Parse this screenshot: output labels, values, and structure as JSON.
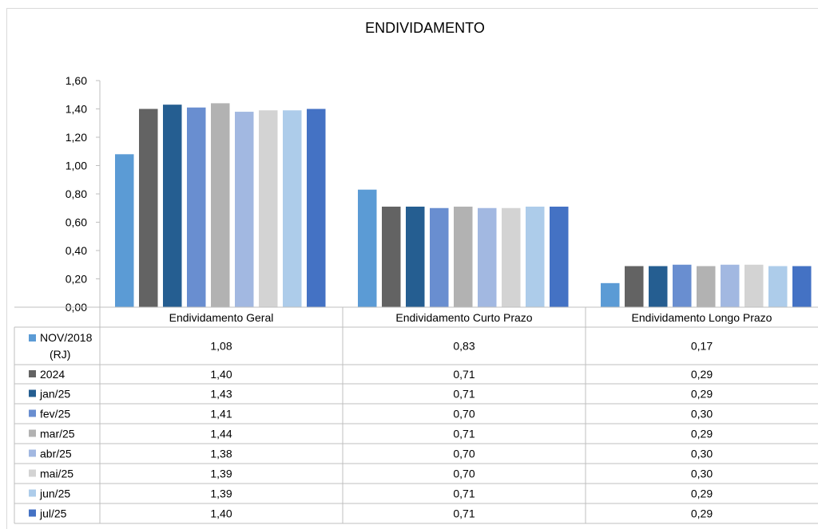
{
  "chart_data": {
    "type": "bar",
    "title": "ENDIVIDAMENTO",
    "categories": [
      "Endividamento Geral",
      "Endividamento Curto Prazo",
      "Endividamento Longo Prazo"
    ],
    "ylim": [
      0,
      1.6
    ],
    "yticks": [
      "0,00",
      "0,20",
      "0,40",
      "0,60",
      "0,80",
      "1,00",
      "1,20",
      "1,40",
      "1,60"
    ],
    "grid": false,
    "legend": "data-table",
    "series": [
      {
        "name": "NOV/2018 (RJ)",
        "color": "#5B9BD5",
        "values": [
          1.08,
          0.83,
          0.17
        ],
        "labels": [
          "1,08",
          "0,83",
          "0,17"
        ]
      },
      {
        "name": "2024",
        "color": "#636363",
        "values": [
          1.4,
          0.71,
          0.29
        ],
        "labels": [
          "1,40",
          "0,71",
          "0,29"
        ]
      },
      {
        "name": "jan/25",
        "color": "#255E91",
        "values": [
          1.43,
          0.71,
          0.29
        ],
        "labels": [
          "1,43",
          "0,71",
          "0,29"
        ]
      },
      {
        "name": "fev/25",
        "color": "#698ED0",
        "values": [
          1.41,
          0.7,
          0.3
        ],
        "labels": [
          "1,41",
          "0,70",
          "0,30"
        ]
      },
      {
        "name": "mar/25",
        "color": "#B2B2B2",
        "values": [
          1.44,
          0.71,
          0.29
        ],
        "labels": [
          "1,44",
          "0,71",
          "0,29"
        ]
      },
      {
        "name": "abr/25",
        "color": "#A2B8E1",
        "values": [
          1.38,
          0.7,
          0.3
        ],
        "labels": [
          "1,38",
          "0,70",
          "0,30"
        ]
      },
      {
        "name": "mai/25",
        "color": "#D3D3D3",
        "values": [
          1.39,
          0.7,
          0.3
        ],
        "labels": [
          "1,39",
          "0,70",
          "0,30"
        ]
      },
      {
        "name": "jun/25",
        "color": "#ADCCEA",
        "values": [
          1.39,
          0.71,
          0.29
        ],
        "labels": [
          "1,39",
          "0,71",
          "0,29"
        ]
      },
      {
        "name": "jul/25",
        "color": "#4472C4",
        "values": [
          1.4,
          0.71,
          0.29
        ],
        "labels": [
          "1,40",
          "0,71",
          "0,29"
        ]
      }
    ]
  }
}
